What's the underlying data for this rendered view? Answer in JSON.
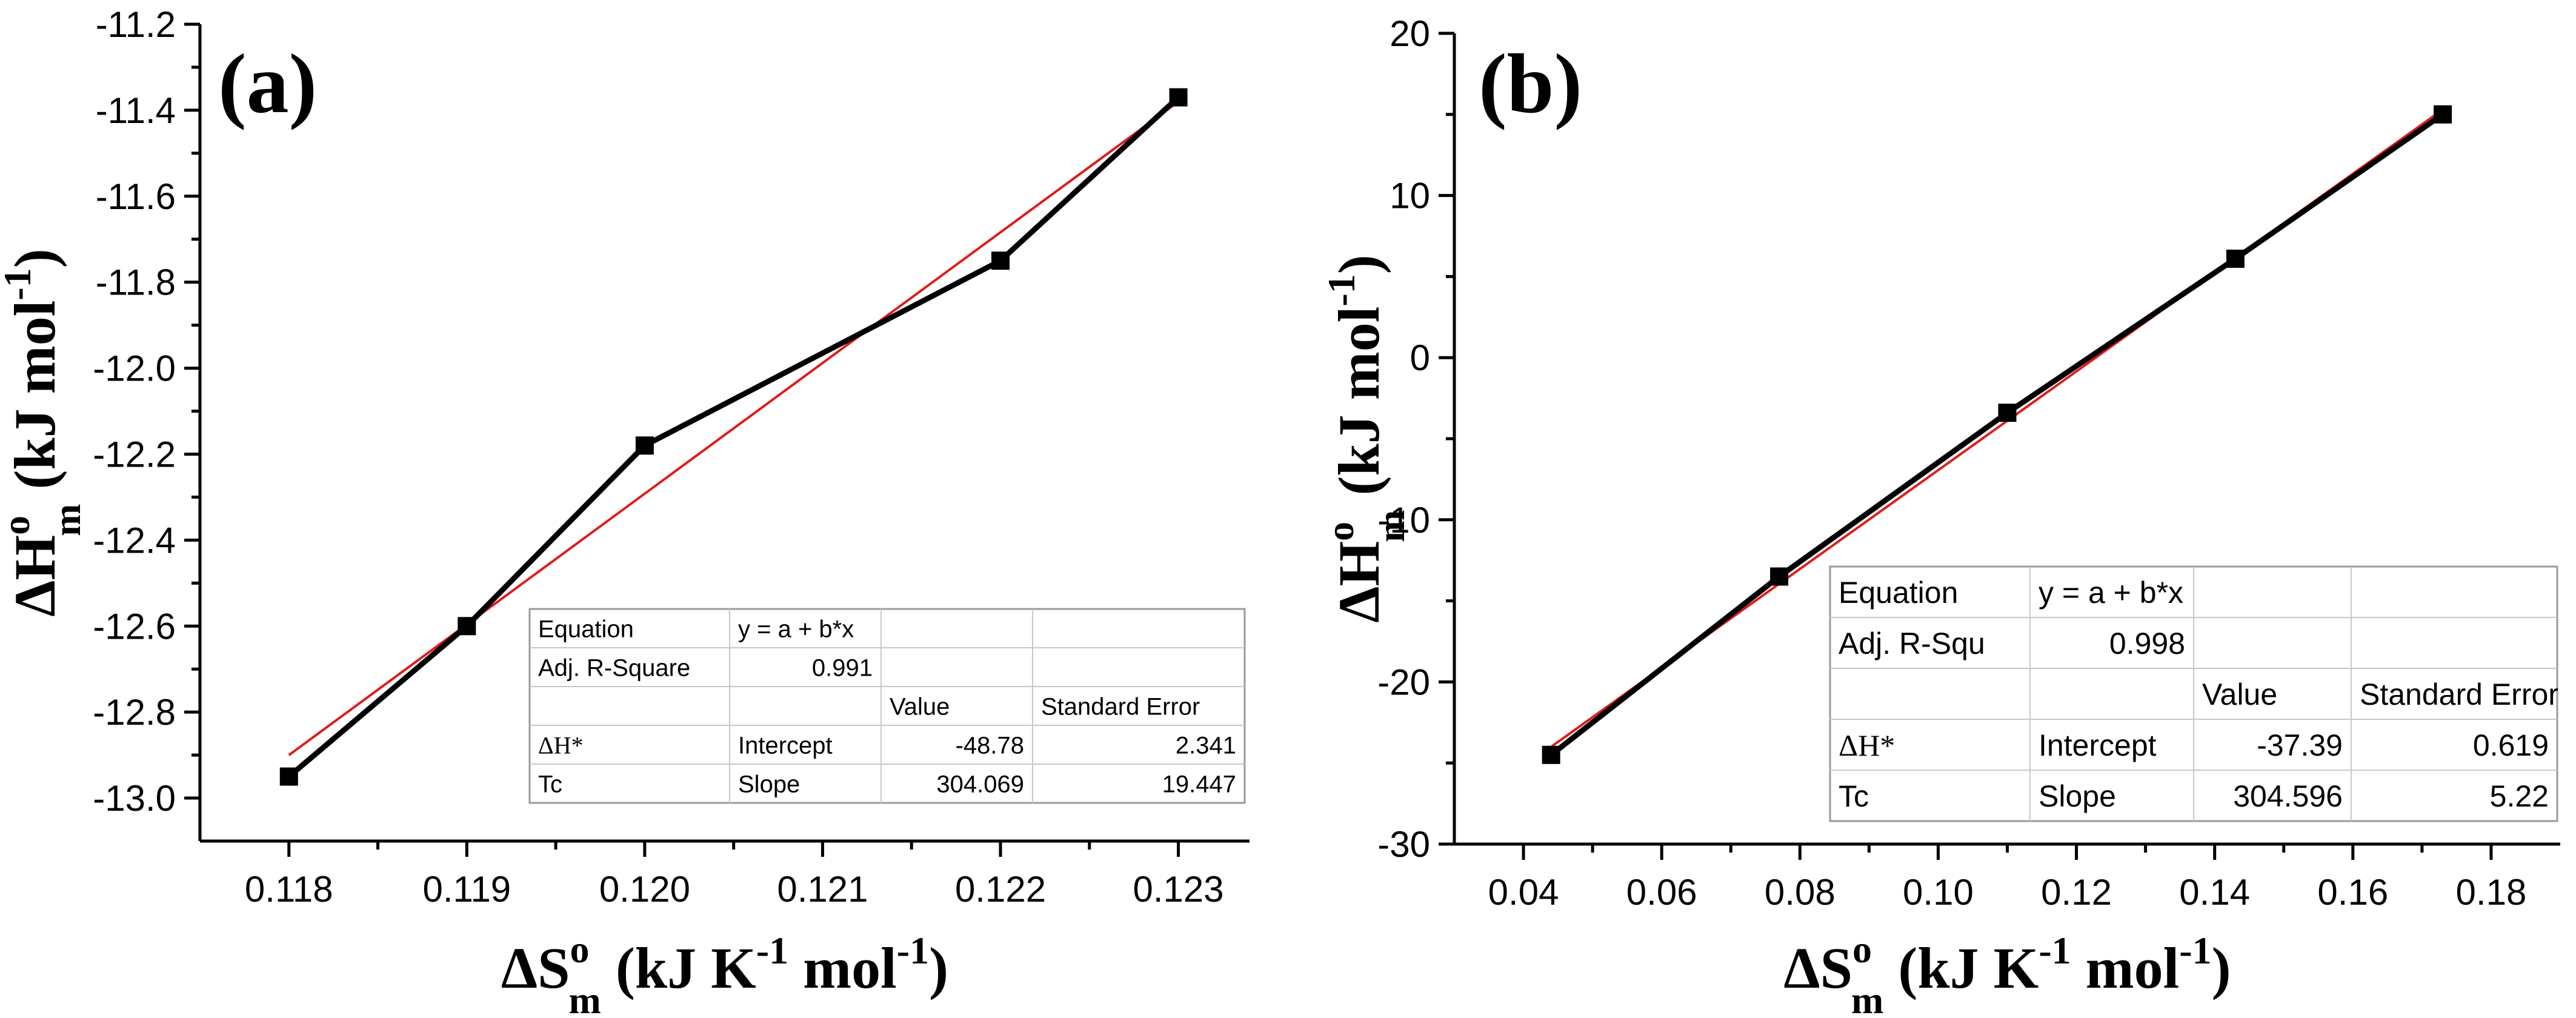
{
  "chart_data": [
    {
      "type": "line",
      "panel_label": "(a)",
      "title": "",
      "xlabel": "ΔS°m (kJ K-1 mol-1)",
      "ylabel": "ΔH°m (kJ mol-1)",
      "xlim": [
        0.1175,
        0.1234
      ],
      "ylim": [
        -13.1,
        -11.2
      ],
      "x_ticks": [
        0.118,
        0.119,
        0.12,
        0.121,
        0.122,
        0.123
      ],
      "x_tick_labels": [
        "0.118",
        "0.119",
        "0.120",
        "0.121",
        "0.122",
        "0.123"
      ],
      "y_ticks": [
        -13.0,
        -12.8,
        -12.6,
        -12.4,
        -12.2,
        -12.0,
        -11.8,
        -11.6,
        -11.4,
        -11.2
      ],
      "y_tick_labels": [
        "-13.0",
        "-12.8",
        "-12.6",
        "-12.4",
        "-12.2",
        "-12.0",
        "-11.8",
        "-11.6",
        "-11.4",
        "-11.2"
      ],
      "series": [
        {
          "name": "data",
          "color": "#000000",
          "marker": "square",
          "x": [
            0.118,
            0.119,
            0.12,
            0.122,
            0.123
          ],
          "y": [
            -12.95,
            -12.6,
            -12.18,
            -11.75,
            -11.37
          ]
        },
        {
          "name": "linear fit",
          "color": "#e01b1b",
          "x": [
            0.118,
            0.123
          ],
          "y": [
            -12.9,
            -11.38
          ]
        }
      ],
      "fit_table": {
        "rows": [
          [
            "Equation",
            "y = a + b*x",
            "",
            ""
          ],
          [
            "Adj. R-Square",
            "0.991",
            "",
            ""
          ],
          [
            "",
            "",
            "Value",
            "Standard Error"
          ],
          [
            "ΔH*",
            "Intercept",
            "-48.78",
            "2.341"
          ],
          [
            "Tc",
            "Slope",
            "304.069",
            "19.447"
          ]
        ]
      }
    },
    {
      "type": "line",
      "panel_label": "(b)",
      "title": "",
      "xlabel": "ΔS°m (kJ K-1 mol-1)",
      "ylabel": "ΔH°m (kJ mol-1)",
      "xlim": [
        0.03,
        0.19
      ],
      "ylim": [
        -30,
        20
      ],
      "x_ticks": [
        0.04,
        0.06,
        0.08,
        0.1,
        0.12,
        0.14,
        0.16,
        0.18
      ],
      "x_tick_labels": [
        "0.04",
        "0.06",
        "0.08",
        "0.10",
        "0.12",
        "0.14",
        "0.16",
        "0.18"
      ],
      "y_ticks": [
        -30,
        -20,
        -10,
        0,
        10,
        20
      ],
      "y_tick_labels": [
        "-30",
        "-20",
        "-10",
        "0",
        "10",
        "20"
      ],
      "series": [
        {
          "name": "data",
          "color": "#000000",
          "marker": "square",
          "x": [
            0.044,
            0.077,
            0.11,
            0.143,
            0.173
          ],
          "y": [
            -24.5,
            -13.5,
            -3.4,
            6.1,
            15.0
          ]
        },
        {
          "name": "linear fit",
          "color": "#e01b1b",
          "x": [
            0.044,
            0.173
          ],
          "y": [
            -24.0,
            15.3
          ]
        }
      ],
      "fit_table": {
        "rows": [
          [
            "Equation",
            "y = a + b*x",
            "",
            ""
          ],
          [
            "Adj. R-Squ",
            "0.998",
            "",
            ""
          ],
          [
            "",
            "",
            "Value",
            "Standard Error"
          ],
          [
            "ΔH*",
            "Intercept",
            "-37.39",
            "0.619"
          ],
          [
            "Tc",
            "Slope",
            "304.596",
            "5.22"
          ]
        ]
      }
    }
  ],
  "axis_text": {
    "delta": "Δ",
    "s_letter": "S",
    "h_letter": "H",
    "superscript_o": "o",
    "subscript_m": "m",
    "x_units_a": "(kJ K",
    "x_units_exp": "-1",
    "x_units_b": " mol",
    "x_units_exp2": "-1",
    "x_units_c": ")",
    "y_units_a": "(kJ mol",
    "y_units_exp": "-1",
    "y_units_b": ")"
  }
}
